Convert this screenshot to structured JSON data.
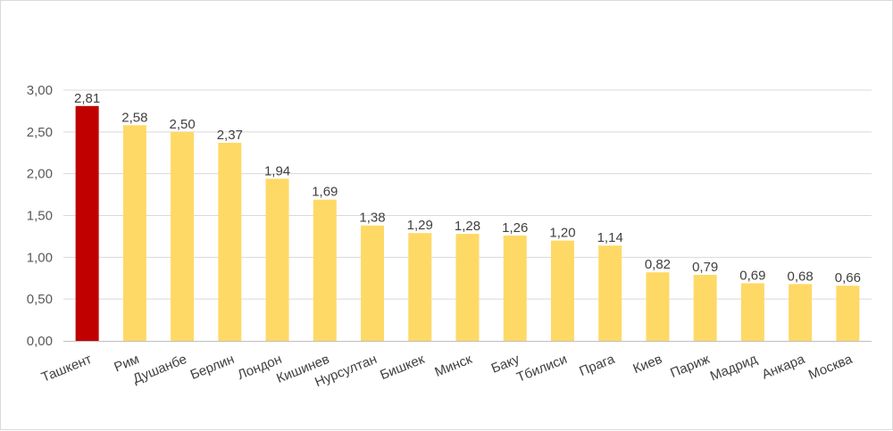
{
  "chart_data": {
    "type": "bar",
    "categories": [
      "Ташкент",
      "Рим",
      "Душанбе",
      "Берлин",
      "Лондон",
      "Кишинев",
      "Нурсултан",
      "Бишкек",
      "Минск",
      "Баку",
      "Тбилиси",
      "Прага",
      "Киев",
      "Париж",
      "Мадрид",
      "Анкара",
      "Москва"
    ],
    "values": [
      2.81,
      2.58,
      2.5,
      2.37,
      1.94,
      1.69,
      1.38,
      1.29,
      1.28,
      1.26,
      1.2,
      1.14,
      0.82,
      0.79,
      0.69,
      0.68,
      0.66
    ],
    "data_labels": [
      "2,81",
      "2,58",
      "2,50",
      "2,37",
      "1,94",
      "1,69",
      "1,38",
      "1,29",
      "1,28",
      "1,26",
      "1,20",
      "1,14",
      "0,82",
      "0,79",
      "0,69",
      "0,68",
      "0,66"
    ],
    "y_ticks": [
      0,
      0.5,
      1,
      1.5,
      2,
      2.5,
      3
    ],
    "y_tick_labels": [
      "0,00",
      "0,50",
      "1,00",
      "1,50",
      "2,00",
      "2,50",
      "3,00"
    ],
    "ylim": [
      0,
      3
    ],
    "title": "",
    "xlabel": "",
    "ylabel": "",
    "grid": true,
    "legend": "none",
    "highlight_index": 0,
    "colors": {
      "highlight": "#c00000",
      "bar": "#ffd966",
      "grid": "#d9d9d9",
      "axis": "#bfbfbf"
    }
  }
}
